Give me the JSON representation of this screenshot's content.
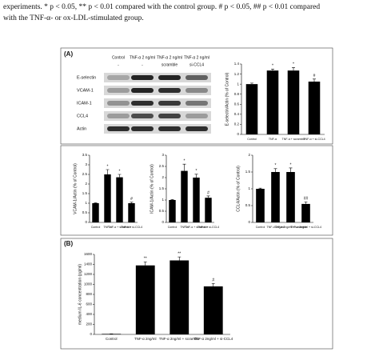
{
  "caption_lines": [
    "experiments. * p < 0.05, ** p < 0.01 compared with the control group. # p < 0.05, ## p < 0.01 compared",
    "with the TNF-α- or ox-LDL-stimulated group."
  ],
  "panel_labels": [
    "(A)",
    "(B)"
  ],
  "blot": {
    "column_headers": [
      [
        "Control",
        "TNF-α 2 ng/ml",
        "TNF-α 2 ng/ml",
        "TNF-α 2 ng/ml"
      ],
      [
        "-",
        "-",
        "scramble",
        "si-CCL4"
      ]
    ],
    "row_labels": [
      "E-selectin",
      "VCAM-1",
      "ICAM-1",
      "CCL4",
      "Actin"
    ]
  },
  "chart_data": [
    {
      "type": "bar",
      "y_label": "E-selectin/Actin (% of Control)",
      "categories": [
        "Control",
        "TNF-α",
        "TNF-α + scramble",
        "TNF-α + si-CCL4"
      ],
      "values": [
        1.0,
        1.27,
        1.27,
        1.05
      ],
      "errors": [
        0.02,
        0.03,
        0.06,
        0.05
      ],
      "annotations": [
        null,
        "*",
        "*",
        "#"
      ],
      "color": "#000000",
      "ylim": [
        0,
        1.4
      ],
      "yticks": [
        0,
        0.2,
        0.4,
        0.6,
        0.8,
        1,
        1.2,
        1.4
      ]
    },
    {
      "type": "bar",
      "y_label": "VCAM-1/Actin (% of Control)",
      "categories": [
        "Control",
        "TNF-α",
        "TNF-α + scramble",
        "TNF-α + si-CCL4"
      ],
      "values": [
        1.0,
        2.5,
        2.35,
        1.0
      ],
      "errors": [
        0.02,
        0.25,
        0.15,
        0.05
      ],
      "annotations": [
        null,
        "*",
        "*",
        "#"
      ],
      "color": "#000000",
      "ylim": [
        0,
        3.5
      ],
      "yticks": [
        0,
        0.5,
        1,
        1.5,
        2,
        2.5,
        3,
        3.5
      ]
    },
    {
      "type": "bar",
      "y_label": "ICAM-1/Actin (% of Control)",
      "categories": [
        "Control",
        "TNF-α",
        "TNF-α + scramble",
        "TNF-α + si-CCL4"
      ],
      "values": [
        1.0,
        2.3,
        2.0,
        1.1
      ],
      "errors": [
        0.02,
        0.3,
        0.15,
        0.08
      ],
      "annotations": [
        null,
        "*",
        "*",
        "#"
      ],
      "color": "#000000",
      "ylim": [
        0,
        3
      ],
      "yticks": [
        0,
        0.5,
        1,
        1.5,
        2,
        2.5,
        3
      ]
    },
    {
      "type": "bar",
      "y_label": "CCL4/Actin (% of Control)",
      "categories": [
        "Control",
        "TNF-α 2ng/ml",
        "TNF-α 2ng/ml + scramble",
        "TNF-α 2ng/ml + si-CCL4"
      ],
      "values": [
        1.0,
        1.5,
        1.5,
        0.55
      ],
      "errors": [
        0.02,
        0.1,
        0.12,
        0.06
      ],
      "annotations": [
        null,
        "*",
        "*",
        "##"
      ],
      "color": "#000000",
      "ylim": [
        0,
        2
      ],
      "yticks": [
        0,
        0.5,
        1,
        1.5,
        2
      ]
    },
    {
      "type": "bar",
      "y_label": "medium IL-6 concentration (pg/ml)",
      "categories": [
        "Control",
        "TNF-α 2ng/ml",
        "TNF-α 2ng/ml + scramble",
        "TNF-α 2ng/ml + si-CCL4"
      ],
      "values": [
        10,
        1380,
        1480,
        960
      ],
      "errors": [
        2,
        70,
        70,
        60
      ],
      "annotations": [
        null,
        "**",
        "**",
        "#"
      ],
      "color": "#000000",
      "ylim": [
        0,
        1600
      ],
      "yticks": [
        0,
        200,
        400,
        600,
        800,
        1000,
        1200,
        1400,
        1600
      ]
    }
  ]
}
